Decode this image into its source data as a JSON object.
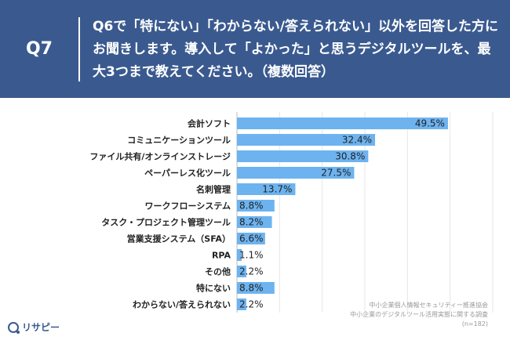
{
  "header": {
    "qnum": "Q7",
    "question": "Q6で「特にない」「わからない/答えられない」以外を回答した方にお聞きします。導入して「よかった」と思うデジタルツールを、最大3つまで教えてください。（複数回答）"
  },
  "chart_data": {
    "type": "bar",
    "orientation": "horizontal",
    "categories": [
      "会計ソフト",
      "コミュニケーションツール",
      "ファイル共有/オンラインストレージ",
      "ペーパーレス化ツール",
      "名刺管理",
      "ワークフローシステム",
      "タスク・プロジェクト管理ツール",
      "営業支援システム（SFA）",
      "RPA",
      "その他",
      "特にない",
      "わからない/答えられない"
    ],
    "values": [
      49.5,
      32.4,
      30.8,
      27.5,
      13.7,
      8.8,
      8.2,
      6.6,
      1.1,
      2.2,
      8.8,
      2.2
    ],
    "value_labels": [
      "49.5%",
      "32.4%",
      "30.8%",
      "27.5%",
      "13.7%",
      "8.8%",
      "8.2%",
      "6.6%",
      "1.1%",
      "2.2%",
      "8.8%",
      "2.2%"
    ],
    "xlim": [
      0,
      60
    ],
    "grid": true,
    "bar_color": "#6db3f0",
    "title": "",
    "xlabel": "",
    "ylabel": ""
  },
  "source": {
    "line1": "中小企業個人情報セキュリティー推進協会",
    "line2": "中小企業のデジタルツール活用実態に関する調査",
    "line3": "(n=182)"
  },
  "logo": {
    "text": "リサピー"
  },
  "colors": {
    "header_bg": "#3a5a8f",
    "bar": "#6db3f0"
  }
}
